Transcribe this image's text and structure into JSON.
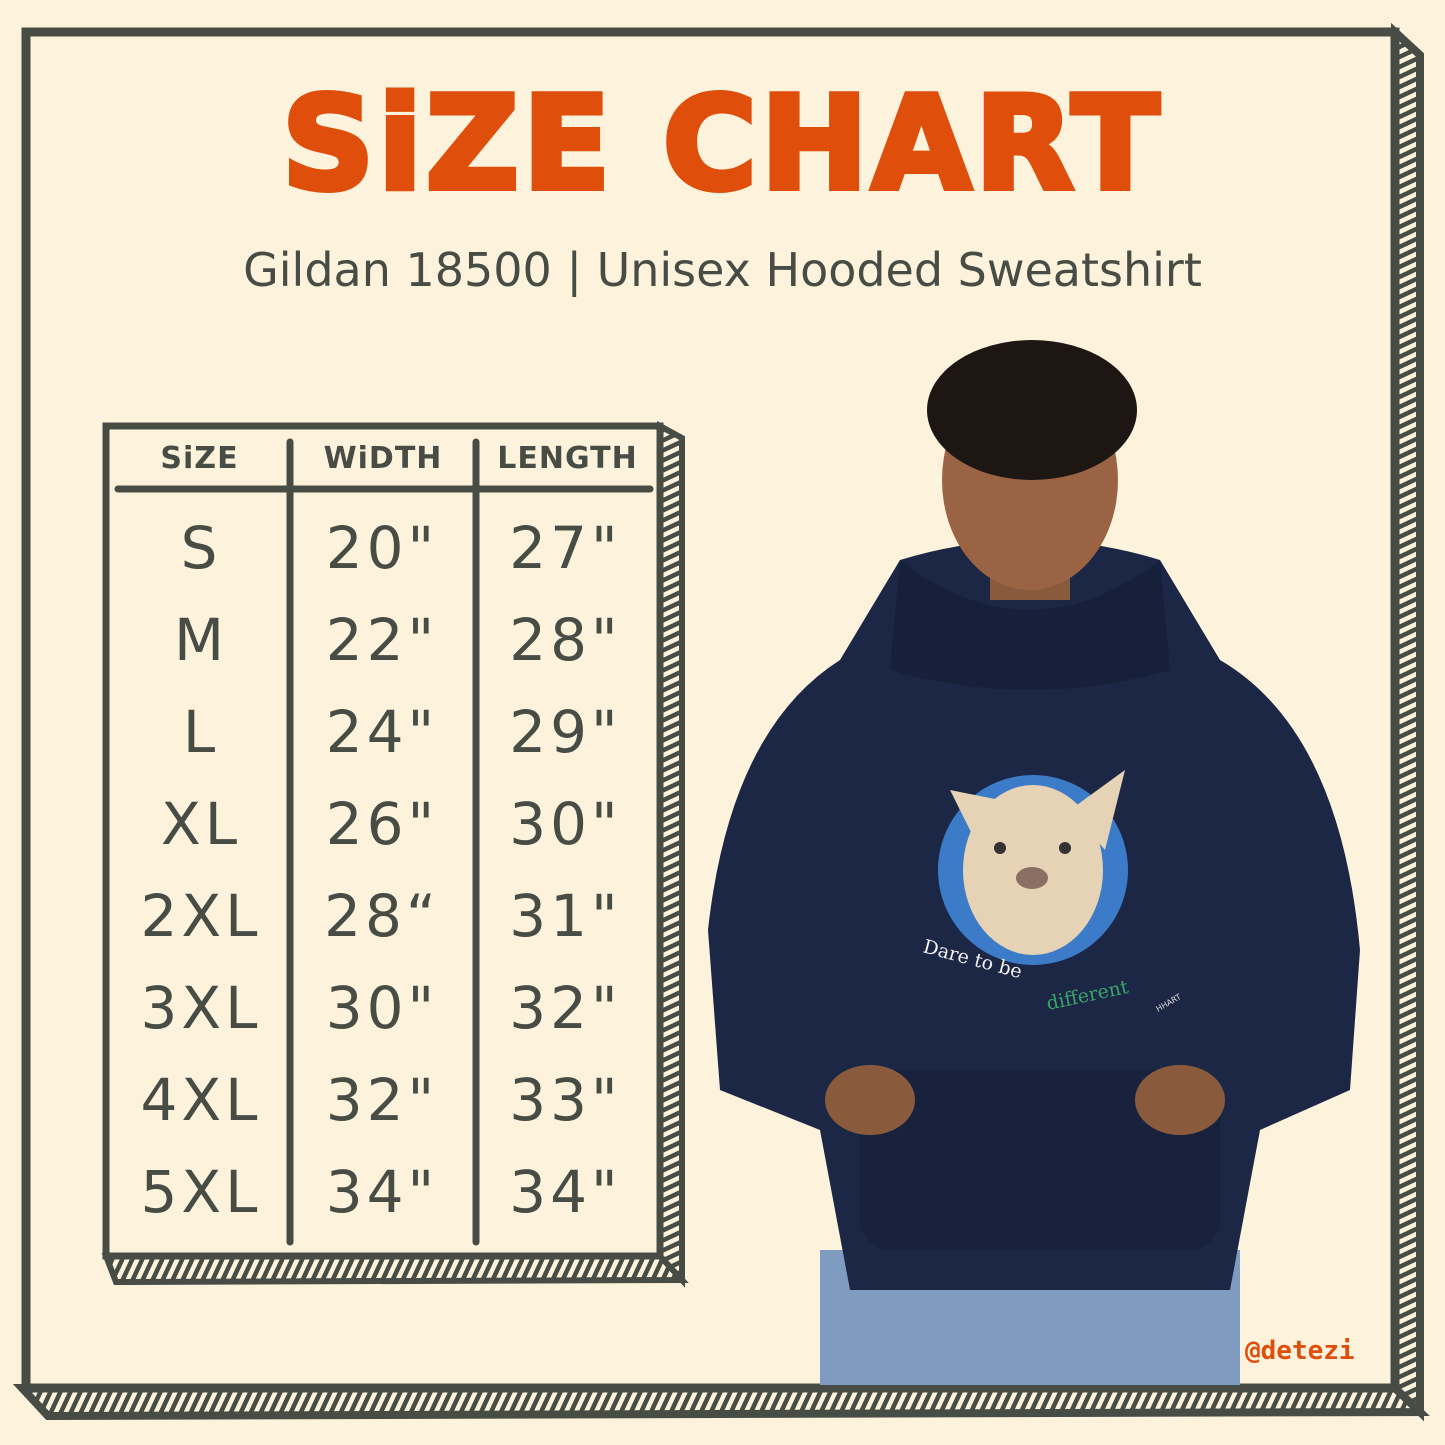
{
  "title": "SiZE CHART",
  "subtitle": "Gildan 18500 | Unisex Hooded Sweatshirt",
  "table": {
    "headers": [
      "SiZE",
      "WiDTH",
      "LENGTH"
    ],
    "rows": [
      [
        "S",
        "20\"",
        "27\""
      ],
      [
        "M",
        "22\"",
        "28\""
      ],
      [
        "L",
        "24\"",
        "29\""
      ],
      [
        "XL",
        "26\"",
        "30\""
      ],
      [
        "2XL",
        "28“",
        "31\""
      ],
      [
        "3XL",
        "30\"",
        "32\""
      ],
      [
        "4XL",
        "32\"",
        "33\""
      ],
      [
        "5XL",
        "34\"",
        "34\""
      ]
    ]
  },
  "graphic": {
    "slogan_part1": "Dare to be",
    "slogan_part2": "different",
    "signature": "HHART"
  },
  "watermark": "@detezi",
  "colors": {
    "background": "#fdf3dc",
    "ink": "#474c45",
    "accent": "#e04e0c",
    "hoodie": "#1c2745",
    "badge": "#3b7bc8"
  }
}
